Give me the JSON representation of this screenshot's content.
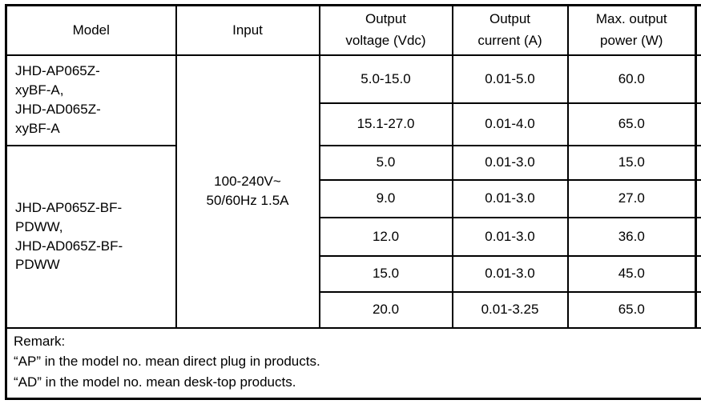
{
  "colors": {
    "border": "#000000",
    "text": "#000000",
    "background": "#ffffff"
  },
  "table": {
    "headers": {
      "model": "Model",
      "input": "Input",
      "output_voltage": "Output\nvoltage (Vdc)",
      "output_current": "Output\ncurrent (A)",
      "max_output_power": "Max. output\npower (W)"
    },
    "model_groups": [
      {
        "label": "JHD-AP065Z-\nxyBF-A,\nJHD-AD065Z-\nxyBF-A"
      },
      {
        "label": "JHD-AP065Z-BF-\nPDWW,\nJHD-AD065Z-BF-\nPDWW"
      }
    ],
    "input_value": "100-240V~\n50/60Hz 1.5A",
    "rows": [
      {
        "voltage": "5.0-15.0",
        "current": "0.01-5.0",
        "power": "60.0"
      },
      {
        "voltage": "15.1-27.0",
        "current": "0.01-4.0",
        "power": "65.0"
      },
      {
        "voltage": "5.0",
        "current": "0.01-3.0",
        "power": "15.0"
      },
      {
        "voltage": "9.0",
        "current": "0.01-3.0",
        "power": "27.0"
      },
      {
        "voltage": "12.0",
        "current": "0.01-3.0",
        "power": "36.0"
      },
      {
        "voltage": "15.0",
        "current": "0.01-3.0",
        "power": "45.0"
      },
      {
        "voltage": "20.0",
        "current": "0.01-3.25",
        "power": "65.0"
      }
    ],
    "remark": "Remark:\n“AP” in the model no. mean direct plug in products.\n“AD” in the model no. mean desk-top products."
  }
}
